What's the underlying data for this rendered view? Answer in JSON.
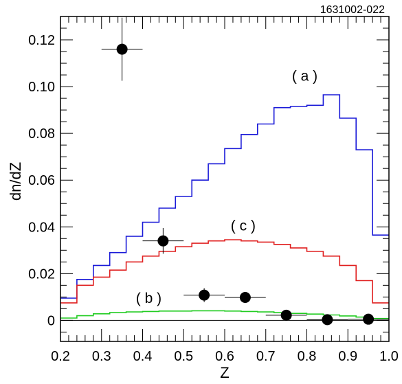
{
  "figure_id": "1631002-022",
  "chart_data": {
    "type": "line",
    "title": "",
    "xlabel": "Z",
    "ylabel": "dn/dZ",
    "xlim": [
      0.2,
      1.0
    ],
    "ylim": [
      -0.009,
      0.13
    ],
    "x_ticks": [
      0.2,
      0.3,
      0.4,
      0.5,
      0.6,
      0.7,
      0.8,
      0.9,
      1.0
    ],
    "x_tick_labels": [
      "0.2",
      "0.3",
      "0.4",
      "0.5",
      "0.6",
      "0.7",
      "0.8",
      "0.9",
      "1.0"
    ],
    "y_ticks": [
      0,
      0.02,
      0.04,
      0.06,
      0.08,
      0.1,
      0.12
    ],
    "y_tick_labels": [
      "0",
      "0.02",
      "0.04",
      "0.06",
      "0.08",
      "0.10",
      "0.12"
    ],
    "grid": false,
    "legend": "none",
    "zero_line": true,
    "annotations": [
      {
        "text": "( a )",
        "x": 0.795,
        "y": 0.1025
      },
      {
        "text": "( c )",
        "x": 0.645,
        "y": 0.0385
      },
      {
        "text": "( b )",
        "x": 0.415,
        "y": 0.0075
      }
    ],
    "series": [
      {
        "style": "histogram",
        "color": "#1a1ad8",
        "bin_edges": [
          0.2,
          0.24,
          0.28,
          0.32,
          0.36,
          0.4,
          0.44,
          0.48,
          0.52,
          0.56,
          0.6,
          0.64,
          0.68,
          0.72,
          0.76,
          0.8,
          0.84,
          0.88,
          0.92,
          0.96,
          1.0
        ],
        "values": [
          0.0095,
          0.0175,
          0.0235,
          0.029,
          0.036,
          0.042,
          0.048,
          0.053,
          0.06,
          0.067,
          0.0735,
          0.0795,
          0.084,
          0.091,
          0.0915,
          0.092,
          0.0965,
          0.0865,
          0.073,
          0.0365
        ]
      },
      {
        "style": "histogram",
        "color": "#e02020",
        "bin_edges": [
          0.2,
          0.24,
          0.28,
          0.32,
          0.36,
          0.4,
          0.44,
          0.48,
          0.52,
          0.56,
          0.6,
          0.64,
          0.68,
          0.72,
          0.76,
          0.8,
          0.84,
          0.88,
          0.92,
          0.96,
          1.0
        ],
        "values": [
          0.0075,
          0.015,
          0.0185,
          0.0215,
          0.025,
          0.0275,
          0.0295,
          0.0315,
          0.033,
          0.034,
          0.0345,
          0.034,
          0.0335,
          0.0325,
          0.031,
          0.0295,
          0.0275,
          0.0235,
          0.017,
          0.0075
        ]
      },
      {
        "style": "histogram",
        "color": "#22cc22",
        "bin_edges": [
          0.2,
          0.24,
          0.28,
          0.32,
          0.36,
          0.4,
          0.44,
          0.48,
          0.52,
          0.56,
          0.6,
          0.64,
          0.68,
          0.72,
          0.76,
          0.8,
          0.84,
          0.88,
          0.92,
          0.96,
          1.0
        ],
        "values": [
          0.001,
          0.002,
          0.0028,
          0.0033,
          0.0036,
          0.0038,
          0.004,
          0.004,
          0.0041,
          0.0041,
          0.004,
          0.0038,
          0.0036,
          0.0033,
          0.003,
          0.0027,
          0.0023,
          0.0019,
          0.0014,
          0.0008
        ]
      },
      {
        "style": "points",
        "color": "#000000",
        "points": [
          {
            "x": 0.35,
            "y": 0.116,
            "xerr": 0.05,
            "yerr": 0.0135
          },
          {
            "x": 0.45,
            "y": 0.034,
            "xerr": 0.05,
            "yerr": 0.0055
          },
          {
            "x": 0.55,
            "y": 0.0108,
            "xerr": 0.05,
            "yerr": 0.003
          },
          {
            "x": 0.65,
            "y": 0.0098,
            "xerr": 0.05,
            "yerr": 0.002
          },
          {
            "x": 0.75,
            "y": 0.0022,
            "xerr": 0.05,
            "yerr": 0.0012
          },
          {
            "x": 0.85,
            "y": 0.0003,
            "xerr": 0.05,
            "yerr": 0.001
          },
          {
            "x": 0.95,
            "y": 0.0005,
            "xerr": 0.05,
            "yerr": 0.001
          }
        ]
      }
    ]
  }
}
